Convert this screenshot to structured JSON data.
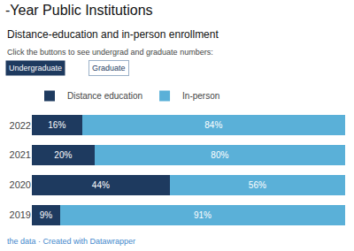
{
  "chart_data": {
    "type": "bar",
    "orientation": "horizontal",
    "stacked": true,
    "title": "-Year Public Institutions",
    "subtitle": "Distance-education and in-person enrollment",
    "annotations": [
      "Click the buttons to see undergrad and graduate numbers:",
      "Undergraduate",
      "Graduate",
      "the data · Created with Datawrapper"
    ],
    "categories": [
      "2022",
      "2021",
      "2020",
      "2019"
    ],
    "series": [
      {
        "name": "Distance education",
        "color": "#1e3a5f",
        "values": [
          16,
          20,
          44,
          9
        ],
        "value_labels": [
          "16%",
          "20%",
          "44%",
          "9%"
        ]
      },
      {
        "name": "In-person",
        "color": "#5ab0d8",
        "values": [
          84,
          80,
          56,
          91
        ],
        "value_labels": [
          "84%",
          "80%",
          "56%",
          "91%"
        ]
      }
    ],
    "xlim": [
      0,
      100
    ],
    "tick_labels": "y",
    "data_labels": true,
    "grid": false,
    "legend": "top left"
  }
}
